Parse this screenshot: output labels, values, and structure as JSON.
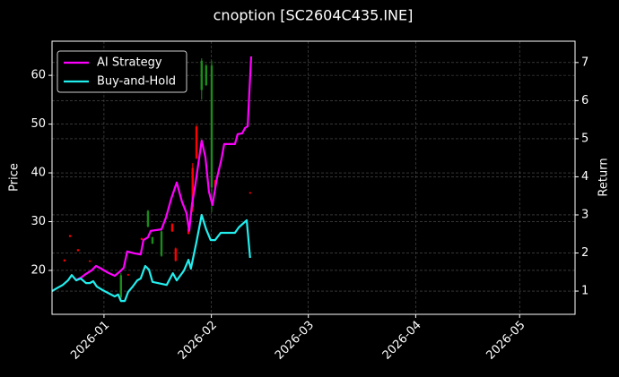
{
  "chart_data": {
    "type": "candlestick",
    "title": "cnoption [SC2604C435.INE]",
    "ylabel": "Price",
    "y2label": "Return",
    "xlim": [
      -15,
      136
    ],
    "xticks": [
      {
        "value": 0,
        "label": "2026-01"
      },
      {
        "value": 31,
        "label": "2026-02"
      },
      {
        "value": 59,
        "label": "2026-03"
      },
      {
        "value": 90,
        "label": "2026-04"
      },
      {
        "value": 120,
        "label": "2026-05"
      }
    ],
    "ylim": [
      11,
      67
    ],
    "yticks": [
      20,
      30,
      40,
      50,
      60
    ],
    "y2lim": [
      0.39,
      7.56
    ],
    "y2ticks": [
      1,
      2,
      3,
      4,
      5,
      6,
      7
    ],
    "grid": true,
    "legend": "upper left",
    "candles": {
      "up_color": "#1a8c1a",
      "down_color": "#ff0000",
      "x": [
        -11.4,
        -9.8,
        -7.5,
        -4.1,
        4.9,
        7.0,
        10.9,
        12.7,
        14.0,
        16.6,
        19.7,
        20.7,
        24.4,
        25.6,
        26.7,
        28.2,
        29.5,
        31.1,
        32.1,
        42.2
      ],
      "open": [
        22.2,
        27.2,
        24.3,
        22.0,
        14.5,
        19.2,
        26.6,
        29.0,
        25.5,
        23.0,
        29.5,
        24.5,
        28.5,
        41.0,
        49.5,
        57.0,
        58.0,
        37.0,
        38.5,
        36.0
      ],
      "high": [
        22.3,
        27.3,
        24.4,
        22.1,
        19.5,
        19.3,
        26.7,
        32.4,
        26.9,
        28.2,
        29.7,
        24.7,
        28.6,
        42.0,
        49.8,
        63.5,
        62.3,
        63.0,
        38.6,
        36.1
      ],
      "low": [
        21.8,
        26.8,
        23.9,
        21.7,
        13.5,
        18.9,
        26.2,
        28.8,
        25.4,
        22.8,
        27.9,
        21.8,
        27.4,
        32.0,
        42.8,
        55.0,
        57.8,
        32.0,
        36.9,
        35.7
      ],
      "close": [
        21.9,
        26.9,
        24.0,
        21.8,
        19.0,
        19.0,
        26.3,
        32.2,
        26.8,
        28.0,
        28.0,
        22.0,
        27.5,
        33.0,
        43.0,
        63.0,
        62.0,
        62.0,
        37.0,
        35.8
      ]
    },
    "series": [
      {
        "name": "AI Strategy",
        "color": "#ff00ff",
        "axis": "y2",
        "x": [
          -8.3,
          -6.7,
          -5.2,
          -3.6,
          -2.3,
          -0.8,
          1.0,
          3.1,
          4.7,
          5.7,
          6.7,
          8.8,
          10.6,
          11.4,
          12.7,
          13.5,
          16.6,
          17.9,
          19.4,
          21.0,
          22.5,
          23.8,
          24.6,
          25.4,
          26.4,
          28.2,
          29.3,
          30.3,
          31.3,
          32.6,
          33.9,
          34.7,
          37.8,
          38.6,
          39.9,
          40.7,
          41.5,
          42.0,
          42.5
        ],
        "values": [
          1.28,
          1.35,
          1.45,
          1.54,
          1.66,
          1.59,
          1.49,
          1.4,
          1.52,
          1.61,
          2.04,
          1.99,
          1.96,
          2.34,
          2.41,
          2.58,
          2.62,
          2.93,
          3.42,
          3.85,
          3.35,
          3.05,
          2.58,
          3.28,
          3.8,
          4.95,
          4.51,
          3.61,
          3.26,
          3.96,
          4.46,
          4.86,
          4.86,
          5.12,
          5.14,
          5.28,
          5.33,
          6.29,
          7.16
        ]
      },
      {
        "name": "Buy-and-Hold",
        "color": "#22eeee",
        "axis": "y2",
        "x": [
          -15.0,
          -13.7,
          -11.9,
          -10.4,
          -9.3,
          -8.0,
          -6.7,
          -5.2,
          -4.1,
          -3.1,
          -2.1,
          -0.3,
          1.6,
          3.1,
          4.1,
          4.9,
          6.0,
          7.0,
          8.3,
          9.6,
          10.6,
          11.9,
          13.0,
          14.0,
          18.1,
          19.9,
          21.0,
          23.1,
          24.4,
          25.1,
          26.7,
          28.2,
          29.5,
          30.8,
          32.1,
          33.7,
          35.0,
          37.8,
          38.9,
          41.2,
          42.2
        ],
        "values": [
          1.0,
          1.07,
          1.16,
          1.28,
          1.42,
          1.28,
          1.33,
          1.21,
          1.21,
          1.26,
          1.12,
          1.02,
          0.93,
          0.86,
          0.91,
          0.74,
          0.74,
          0.98,
          1.12,
          1.28,
          1.33,
          1.66,
          1.56,
          1.24,
          1.16,
          1.47,
          1.28,
          1.54,
          1.82,
          1.59,
          2.29,
          3.0,
          2.62,
          2.34,
          2.34,
          2.53,
          2.53,
          2.53,
          2.67,
          2.86,
          1.87
        ]
      }
    ]
  }
}
